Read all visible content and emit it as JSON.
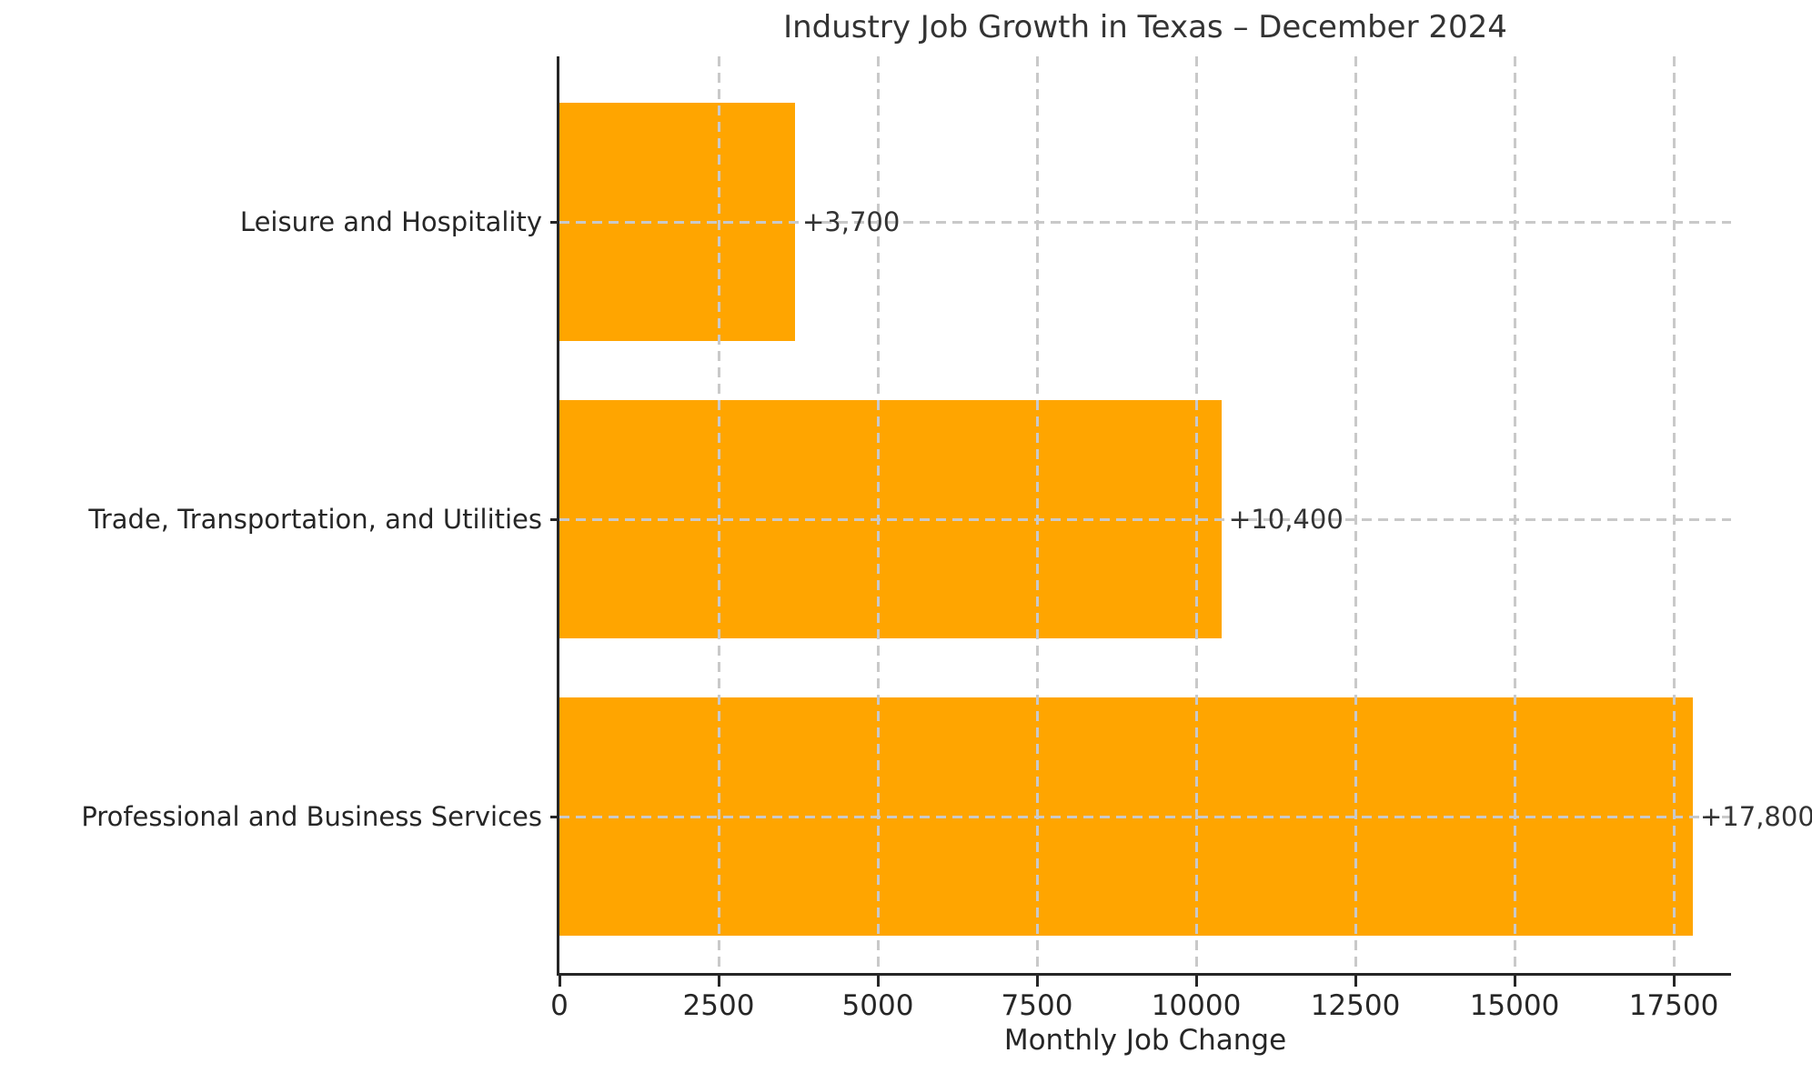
{
  "chart_data": {
    "type": "bar",
    "orientation": "horizontal",
    "title": "Industry Job Growth in Texas – December 2024",
    "xlabel": "Monthly Job Change",
    "ylabel": "",
    "categories": [
      "Leisure and Hospitality",
      "Trade, Transportation, and Utilities",
      "Professional and Business Services"
    ],
    "values": [
      3700,
      10400,
      17800
    ],
    "bar_value_labels": [
      "+3,700",
      "+10,400",
      "+17,800"
    ],
    "x_ticks": [
      0,
      2500,
      5000,
      7500,
      10000,
      12500,
      15000,
      17500
    ],
    "xlim": [
      0,
      18400
    ],
    "grid": "dashed",
    "legend": "none",
    "colors": {
      "bar": "#FFA500",
      "text": "#333333",
      "tick_text": "#262626",
      "grid": "#c9c9c9",
      "spine": "#262626",
      "background": "#ffffff"
    }
  }
}
